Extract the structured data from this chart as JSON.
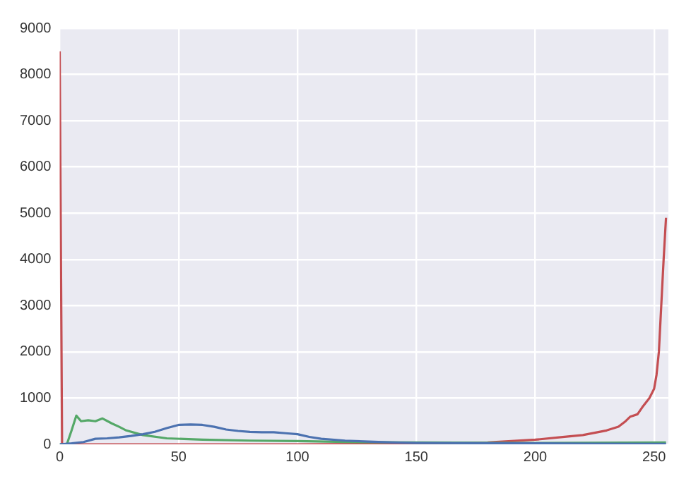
{
  "chart_data": {
    "type": "line",
    "xlim": [
      0,
      256
    ],
    "ylim": [
      0,
      9000
    ],
    "xticks": [
      0,
      50,
      100,
      150,
      200,
      250
    ],
    "yticks": [
      0,
      1000,
      2000,
      3000,
      4000,
      5000,
      6000,
      7000,
      8000,
      9000
    ],
    "grid": true,
    "legend": false,
    "marker": "none",
    "line_style": "solid",
    "series": [
      {
        "color": "#4c72b0",
        "x": [
          0,
          5,
          10,
          15,
          20,
          25,
          30,
          35,
          40,
          45,
          50,
          55,
          60,
          65,
          70,
          75,
          80,
          85,
          90,
          95,
          100,
          105,
          110,
          120,
          130,
          140,
          150,
          175,
          200,
          225,
          255
        ],
        "values": [
          0,
          20,
          50,
          120,
          130,
          150,
          180,
          220,
          270,
          350,
          420,
          430,
          420,
          380,
          320,
          290,
          270,
          260,
          260,
          240,
          220,
          160,
          120,
          80,
          60,
          40,
          30,
          25,
          20,
          15,
          10
        ]
      },
      {
        "color": "#55a868",
        "x": [
          0,
          3,
          5,
          7,
          9,
          12,
          15,
          18,
          22,
          25,
          28,
          35,
          45,
          60,
          80,
          100,
          120,
          150,
          200,
          255
        ],
        "values": [
          0,
          0,
          300,
          620,
          500,
          520,
          500,
          560,
          450,
          380,
          300,
          200,
          130,
          100,
          80,
          70,
          50,
          40,
          30,
          40
        ]
      },
      {
        "color": "#c44e52",
        "x": [
          0,
          1,
          50,
          100,
          150,
          180,
          200,
          210,
          220,
          230,
          235,
          238,
          240,
          243,
          245,
          248,
          250,
          251,
          252,
          253,
          254,
          255
        ],
        "values": [
          8500,
          0,
          0,
          0,
          10,
          40,
          100,
          150,
          200,
          300,
          380,
          500,
          600,
          650,
          800,
          1000,
          1200,
          1500,
          2000,
          3000,
          4000,
          4900
        ]
      }
    ]
  }
}
